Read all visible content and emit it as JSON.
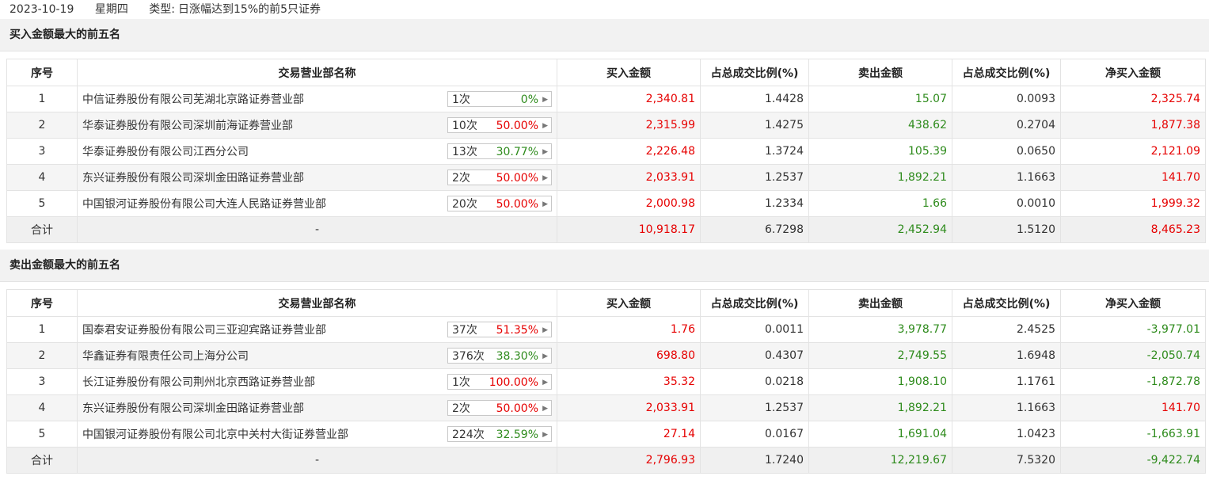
{
  "header": {
    "date": "2023-10-19",
    "weekday": "星期四",
    "type_label": "类型:",
    "type_value": "日涨幅达到15%的前5只证券"
  },
  "columns": [
    "序号",
    "交易营业部名称",
    "买入金额",
    "占总成交比例(%)",
    "卖出金额",
    "占总成交比例(%)",
    "净买入金额"
  ],
  "colors": {
    "up": "#e60000",
    "down": "#2e8b1c",
    "row_alt": "#f5f5f5",
    "border": "#e3e3e3"
  },
  "arrow_icon": "▶",
  "sections": [
    {
      "title": "买入金额最大的前五名",
      "rows": [
        {
          "idx": "1",
          "name": "中信证券股份有限公司芜湖北京路证券营业部",
          "count": "1次",
          "pct": "0%",
          "pct_color": "green",
          "buy": "2,340.81",
          "buy_ratio": "1.4428",
          "sell": "15.07",
          "sell_ratio": "0.0093",
          "net": "2,325.74",
          "net_color": "red"
        },
        {
          "idx": "2",
          "name": "华泰证券股份有限公司深圳前海证券营业部",
          "count": "10次",
          "pct": "50.00%",
          "pct_color": "red",
          "buy": "2,315.99",
          "buy_ratio": "1.4275",
          "sell": "438.62",
          "sell_ratio": "0.2704",
          "net": "1,877.38",
          "net_color": "red"
        },
        {
          "idx": "3",
          "name": "华泰证券股份有限公司江西分公司",
          "count": "13次",
          "pct": "30.77%",
          "pct_color": "green",
          "buy": "2,226.48",
          "buy_ratio": "1.3724",
          "sell": "105.39",
          "sell_ratio": "0.0650",
          "net": "2,121.09",
          "net_color": "red"
        },
        {
          "idx": "4",
          "name": "东兴证券股份有限公司深圳金田路证券营业部",
          "count": "2次",
          "pct": "50.00%",
          "pct_color": "red",
          "buy": "2,033.91",
          "buy_ratio": "1.2537",
          "sell": "1,892.21",
          "sell_ratio": "1.1663",
          "net": "141.70",
          "net_color": "red"
        },
        {
          "idx": "5",
          "name": "中国银河证券股份有限公司大连人民路证券营业部",
          "count": "20次",
          "pct": "50.00%",
          "pct_color": "red",
          "buy": "2,000.98",
          "buy_ratio": "1.2334",
          "sell": "1.66",
          "sell_ratio": "0.0010",
          "net": "1,999.32",
          "net_color": "red"
        }
      ],
      "total": {
        "label": "合计",
        "name": "-",
        "buy": "10,918.17",
        "buy_ratio": "6.7298",
        "sell": "2,452.94",
        "sell_ratio": "1.5120",
        "net": "8,465.23",
        "net_color": "red"
      }
    },
    {
      "title": "卖出金额最大的前五名",
      "rows": [
        {
          "idx": "1",
          "name": "国泰君安证券股份有限公司三亚迎宾路证券营业部",
          "count": "37次",
          "pct": "51.35%",
          "pct_color": "red",
          "buy": "1.76",
          "buy_ratio": "0.0011",
          "sell": "3,978.77",
          "sell_ratio": "2.4525",
          "net": "-3,977.01",
          "net_color": "green"
        },
        {
          "idx": "2",
          "name": "华鑫证券有限责任公司上海分公司",
          "count": "376次",
          "pct": "38.30%",
          "pct_color": "green",
          "buy": "698.80",
          "buy_ratio": "0.4307",
          "sell": "2,749.55",
          "sell_ratio": "1.6948",
          "net": "-2,050.74",
          "net_color": "green"
        },
        {
          "idx": "3",
          "name": "长江证券股份有限公司荆州北京西路证券营业部",
          "count": "1次",
          "pct": "100.00%",
          "pct_color": "red",
          "buy": "35.32",
          "buy_ratio": "0.0218",
          "sell": "1,908.10",
          "sell_ratio": "1.1761",
          "net": "-1,872.78",
          "net_color": "green"
        },
        {
          "idx": "4",
          "name": "东兴证券股份有限公司深圳金田路证券营业部",
          "count": "2次",
          "pct": "50.00%",
          "pct_color": "red",
          "buy": "2,033.91",
          "buy_ratio": "1.2537",
          "sell": "1,892.21",
          "sell_ratio": "1.1663",
          "net": "141.70",
          "net_color": "red"
        },
        {
          "idx": "5",
          "name": "中国银河证券股份有限公司北京中关村大街证券营业部",
          "count": "224次",
          "pct": "32.59%",
          "pct_color": "green",
          "buy": "27.14",
          "buy_ratio": "0.0167",
          "sell": "1,691.04",
          "sell_ratio": "1.0423",
          "net": "-1,663.91",
          "net_color": "green"
        }
      ],
      "total": {
        "label": "合计",
        "name": "-",
        "buy": "2,796.93",
        "buy_ratio": "1.7240",
        "sell": "12,219.67",
        "sell_ratio": "7.5320",
        "net": "-9,422.74",
        "net_color": "green"
      }
    }
  ]
}
